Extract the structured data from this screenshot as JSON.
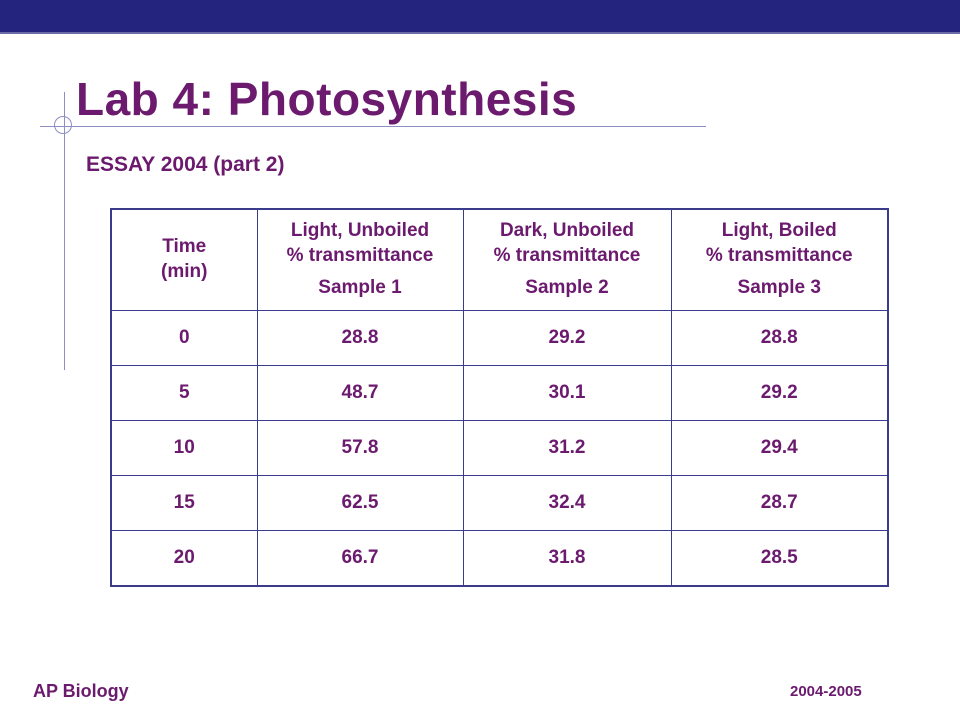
{
  "colors": {
    "top_bar": "#24247e",
    "text": "#6b1a6e",
    "table_border": "#3b3b8c",
    "decoration": "#8e8ec2"
  },
  "title": "Lab 4: Photosynthesis",
  "subtitle": "ESSAY 2004 (part 2)",
  "table": {
    "headers": [
      {
        "line1": "Time",
        "line2": "(min)",
        "sample": ""
      },
      {
        "line1": "Light, Unboiled",
        "line2": "% transmittance",
        "sample": "Sample 1"
      },
      {
        "line1": "Dark, Unboiled",
        "line2": "% transmittance",
        "sample": "Sample 2"
      },
      {
        "line1": "Light, Boiled",
        "line2": "% transmittance",
        "sample": "Sample 3"
      }
    ],
    "rows": [
      [
        "0",
        "28.8",
        "29.2",
        "28.8"
      ],
      [
        "5",
        "48.7",
        "30.1",
        "29.2"
      ],
      [
        "10",
        "57.8",
        "31.2",
        "29.4"
      ],
      [
        "15",
        "62.5",
        "32.4",
        "28.7"
      ],
      [
        "20",
        "66.7",
        "31.8",
        "28.5"
      ]
    ]
  },
  "footer": {
    "left": "AP Biology",
    "right": "2004-2005"
  }
}
